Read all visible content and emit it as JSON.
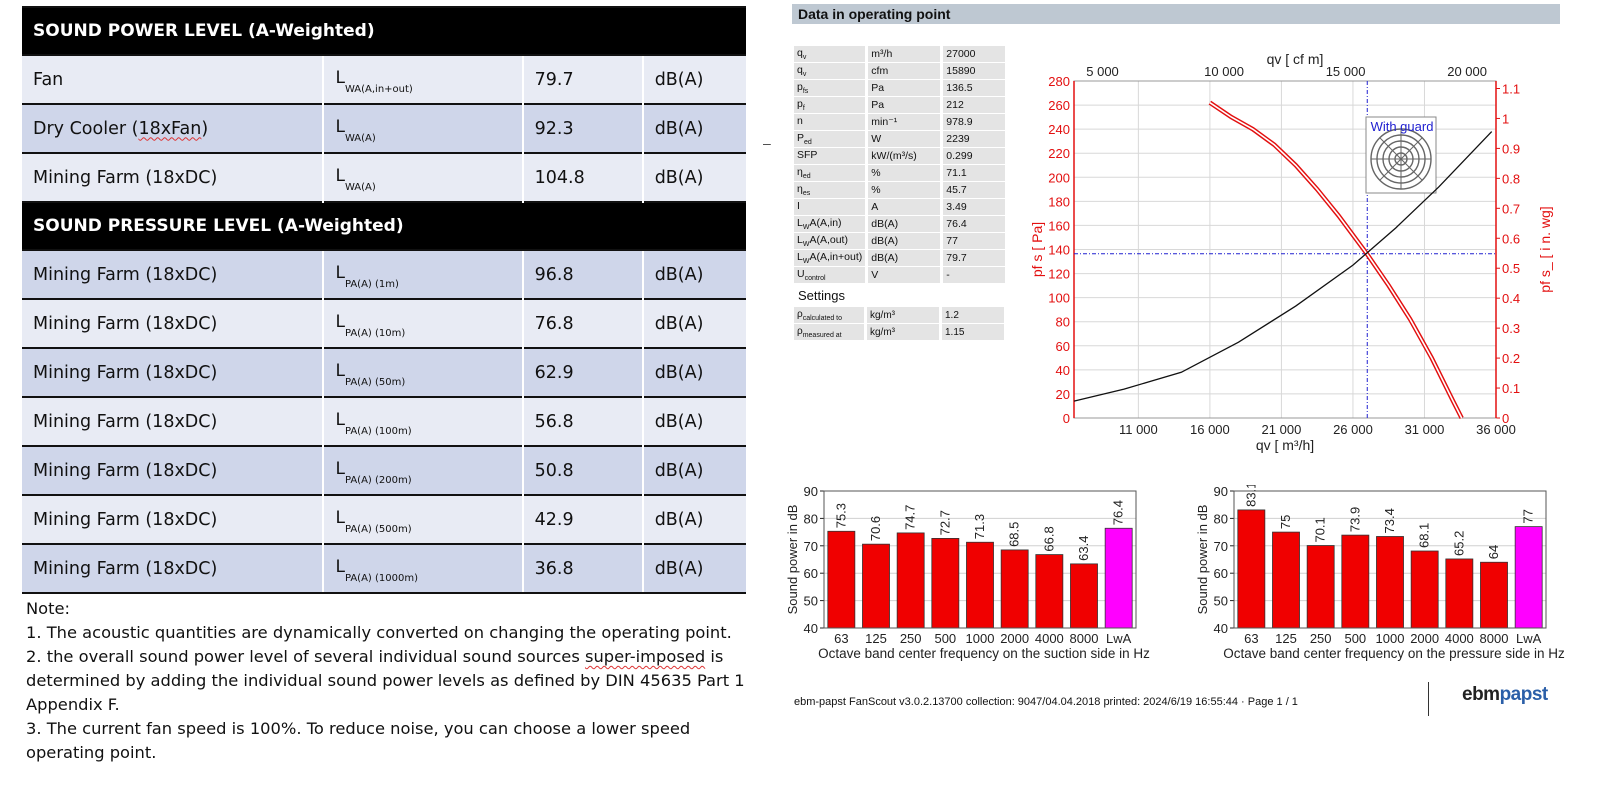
{
  "sound_table": {
    "power_header": "SOUND POWER LEVEL (A-Weighted)",
    "power_rows": [
      {
        "name_pre": "Fan",
        "name_wavy": "",
        "name_post": "",
        "sym": "L",
        "sub": "WA(A,in+out)",
        "value": "79.7",
        "unit": "dB(A)"
      },
      {
        "name_pre": "Dry Cooler (",
        "name_wavy": "18xFan",
        "name_post": ")",
        "sym": "L",
        "sub": "WA(A)",
        "value": "92.3",
        "unit": "dB(A)"
      },
      {
        "name_pre": "Mining Farm (18xDC)",
        "name_wavy": "",
        "name_post": "",
        "sym": "L",
        "sub": "WA(A)",
        "value": "104.8",
        "unit": "dB(A)"
      }
    ],
    "pressure_header": "SOUND PRESSURE LEVEL (A-Weighted)",
    "pressure_rows": [
      {
        "name": "Mining Farm (18xDC)",
        "sym": "L",
        "sub": "PA(A) (1m)",
        "value": "96.8",
        "unit": "dB(A)"
      },
      {
        "name": "Mining Farm (18xDC)",
        "sym": "L",
        "sub": "PA(A) (10m)",
        "value": "76.8",
        "unit": "dB(A)"
      },
      {
        "name": "Mining Farm (18xDC)",
        "sym": "L",
        "sub": "PA(A) (50m)",
        "value": "62.9",
        "unit": "dB(A)"
      },
      {
        "name": "Mining Farm (18xDC)",
        "sym": "L",
        "sub": "PA(A) (100m)",
        "value": "56.8",
        "unit": "dB(A)"
      },
      {
        "name": "Mining Farm (18xDC)",
        "sym": "L",
        "sub": "PA(A) (200m)",
        "value": "50.8",
        "unit": "dB(A)"
      },
      {
        "name": "Mining Farm (18xDC)",
        "sym": "L",
        "sub": "PA(A) (500m)",
        "value": "42.9",
        "unit": "dB(A)"
      },
      {
        "name": "Mining Farm (18xDC)",
        "sym": "L",
        "sub": "PA(A) (1000m)",
        "value": "36.8",
        "unit": "dB(A)"
      }
    ]
  },
  "notes": {
    "title": "Note:",
    "n1": "1. The acoustic quantities are dynamically converted on changing the operating point.",
    "n2_a": "2. the overall sound power level of several individual sound sources ",
    "n2_wavy": "super-imposed",
    "n2_b": " is determined by adding the individual sound power levels as defined by DIN 45635 Part 1 Appendix F.",
    "n3": "3. The current fan speed is 100%. To reduce noise, you can choose a lower speed operating point."
  },
  "operating_point": {
    "header": "Data in operating point",
    "dash": "–",
    "rows": [
      {
        "name": "q",
        "sub": "v",
        "sup": "",
        "unit": "m³/h",
        "value": "27000"
      },
      {
        "name": "q",
        "sub": "v",
        "sup": "",
        "unit": "cfm",
        "value": "15890"
      },
      {
        "name": "p",
        "sub": "fs",
        "sup": "",
        "unit": "Pa",
        "value": "136.5"
      },
      {
        "name": "p",
        "sub": "f",
        "sup": "",
        "unit": "Pa",
        "value": "212"
      },
      {
        "name": "n",
        "sub": "",
        "sup": "",
        "unit": "min⁻¹",
        "value": "978.9"
      },
      {
        "name": "P",
        "sub": "ed",
        "sup": "",
        "unit": "W",
        "value": "2239"
      },
      {
        "name": "SFP",
        "sub": "",
        "sup": "",
        "unit": "kW/(m³/s)",
        "value": "0.299"
      },
      {
        "name": "η",
        "sub": "ed",
        "sup": "",
        "unit": "%",
        "value": "71.1"
      },
      {
        "name": "η",
        "sub": "es",
        "sup": "",
        "unit": "%",
        "value": "45.7"
      },
      {
        "name": "I",
        "sub": "",
        "sup": "",
        "unit": "A",
        "value": "3.49"
      },
      {
        "name": "L",
        "sub": "W",
        "sup": "A(A,in)",
        "unit": "dB(A)",
        "value": "76.4"
      },
      {
        "name": "L",
        "sub": "W",
        "sup": "A(A,out)",
        "unit": "dB(A)",
        "value": "77"
      },
      {
        "name": "L",
        "sub": "W",
        "sup": "A(A,in+out)",
        "unit": "dB(A)",
        "value": "79.7"
      },
      {
        "name": "U",
        "sub": "control",
        "sup": "",
        "unit": "V",
        "value": "-"
      }
    ],
    "settings_label": "Settings",
    "settings": [
      {
        "name": "ρ",
        "sub": "calculated to",
        "unit": "kg/m³",
        "value": "1.2"
      },
      {
        "name": "ρ",
        "sub": "measured at",
        "unit": "kg/m³",
        "value": "1.15"
      }
    ]
  },
  "chart_data": [
    {
      "type": "line",
      "title": "",
      "xlabel": "qv  [ m³/h]",
      "x2label": "qv  [ cf m]",
      "ylabel": "pf s  [ Pa]",
      "y2label": "pf s_ [ i n.  wg]",
      "xlim": [
        6500,
        36000
      ],
      "ylim": [
        0,
        280
      ],
      "y2lim": [
        0,
        1.125
      ],
      "x_ticks": [
        "11 000",
        "16 000",
        "21 000",
        "26 000",
        "31 000",
        "36 000"
      ],
      "x_tick_values": [
        11000,
        16000,
        21000,
        26000,
        31000,
        36000
      ],
      "x2_ticks": [
        "5 000",
        "10 000",
        "15 000",
        "20 000"
      ],
      "x2_tick_values_m3h": [
        8495,
        16990,
        25485,
        33980
      ],
      "y_ticks": [
        0,
        20,
        40,
        60,
        80,
        100,
        120,
        140,
        160,
        180,
        200,
        220,
        240,
        260,
        280
      ],
      "y2_ticks": [
        "0",
        "0.1",
        "0.2",
        "0.3",
        "0.4",
        "0.5",
        "0.6",
        "0.7",
        "0.8",
        "0.9",
        "1",
        "1.1"
      ],
      "annotation": "With  guard",
      "operating_point": {
        "x": 27000,
        "y": 136.5
      },
      "series": [
        {
          "name": "fan curve",
          "color": "#e31010",
          "x": [
            16000,
            17500,
            19000,
            20500,
            22000,
            23500,
            25000,
            26500,
            27000,
            28500,
            30000,
            31500,
            33000,
            33600
          ],
          "y": [
            262,
            250,
            240,
            227,
            210,
            190,
            168,
            144,
            136,
            110,
            82,
            50,
            14,
            0
          ]
        },
        {
          "name": "system curve",
          "color": "#111111",
          "x": [
            6500,
            10000,
            14000,
            18000,
            22000,
            26000,
            29000,
            32000,
            35700
          ],
          "y": [
            14,
            24,
            38,
            63,
            93,
            127,
            158,
            192,
            238
          ]
        }
      ]
    },
    {
      "type": "bar",
      "title": "",
      "xlabel": "Octave band center frequency on the suction side in Hz",
      "ylabel": "Sound power in dB",
      "ylim": [
        40,
        90
      ],
      "y_ticks": [
        40,
        50,
        60,
        70,
        80,
        90
      ],
      "categories": [
        "63",
        "125",
        "250",
        "500",
        "1000",
        "2000",
        "4000",
        "8000",
        "LwA"
      ],
      "values": [
        75.3,
        70.6,
        74.7,
        72.7,
        71.3,
        68.5,
        66.8,
        63.4,
        76.4
      ],
      "labels": [
        "75.3",
        "70.6",
        "74.7",
        "72.7",
        "71.3",
        "68.5",
        "66.8",
        "63.4",
        "76.4"
      ],
      "colors": [
        "#f00000",
        "#f00000",
        "#f00000",
        "#f00000",
        "#f00000",
        "#f00000",
        "#f00000",
        "#f00000",
        "#ff00ff"
      ]
    },
    {
      "type": "bar",
      "title": "",
      "xlabel": "Octave band center frequency on the pressure side in Hz",
      "ylabel": "Sound power in dB",
      "ylim": [
        40,
        90
      ],
      "y_ticks": [
        40,
        50,
        60,
        70,
        80,
        90
      ],
      "categories": [
        "63",
        "125",
        "250",
        "500",
        "1000",
        "2000",
        "4000",
        "8000",
        "LwA"
      ],
      "values": [
        83.1,
        75,
        70.1,
        73.9,
        73.4,
        68.1,
        65.2,
        64,
        77
      ],
      "labels": [
        "83.1",
        "75",
        "70.1",
        "73.9",
        "73.4",
        "68.1",
        "65.2",
        "64",
        "77"
      ],
      "colors": [
        "#f00000",
        "#f00000",
        "#f00000",
        "#f00000",
        "#f00000",
        "#f00000",
        "#f00000",
        "#f00000",
        "#ff00ff"
      ]
    }
  ],
  "footer": {
    "text": "ebm-papst FanScout  v3.0.2.13700 collection: 9047/04.04.2018 printed: 2024/6/19 16:55:44  ·  Page 1 / 1",
    "brand_a": "ebm",
    "brand_b": "papst"
  }
}
